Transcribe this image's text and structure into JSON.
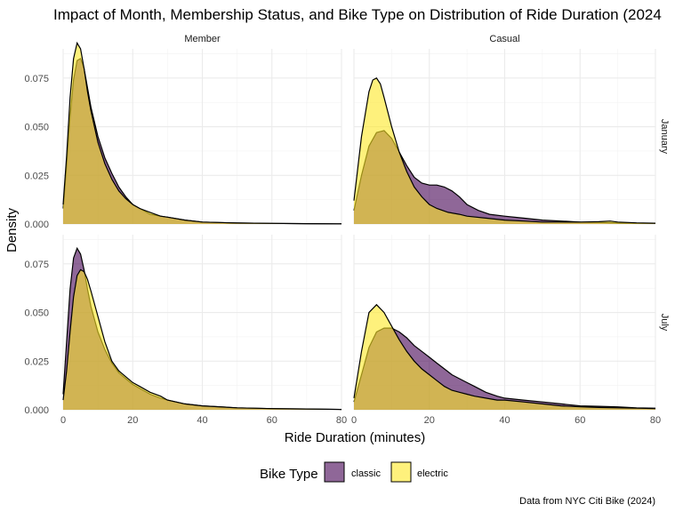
{
  "chart_data": {
    "type": "area",
    "subtype": "density-faceted",
    "title": "Impact of Month, Membership Status, and Bike Type on Distribution of Ride Duration (2024",
    "xlabel": "Ride Duration (minutes)",
    "ylabel": "Density",
    "xlim": [
      0,
      80
    ],
    "ylim": [
      0,
      0.09
    ],
    "x_ticks": [
      "0",
      "20",
      "40",
      "60",
      "80"
    ],
    "y_ticks": [
      "0.000",
      "0.025",
      "0.050",
      "0.075"
    ],
    "grid": true,
    "legend": {
      "title": "Bike Type",
      "position": "bottom",
      "entries": [
        {
          "label": "classic",
          "color": "#440154"
        },
        {
          "label": "electric",
          "color": "#FDE725"
        }
      ]
    },
    "caption": "Data from NYC Citi Bike (2024)",
    "col_labels": [
      "Member",
      "Casual"
    ],
    "row_labels": [
      "January",
      "July"
    ],
    "panels": [
      {
        "row": "January",
        "col": "Member",
        "series": [
          {
            "name": "classic",
            "points": [
              [
                0,
                0.008
              ],
              [
                1,
                0.03
              ],
              [
                2,
                0.055
              ],
              [
                3,
                0.074
              ],
              [
                4,
                0.084
              ],
              [
                5,
                0.085
              ],
              [
                6,
                0.08
              ],
              [
                7,
                0.07
              ],
              [
                8,
                0.06
              ],
              [
                10,
                0.045
              ],
              [
                12,
                0.034
              ],
              [
                14,
                0.026
              ],
              [
                16,
                0.019
              ],
              [
                18,
                0.014
              ],
              [
                20,
                0.01
              ],
              [
                22,
                0.008
              ],
              [
                25,
                0.005
              ],
              [
                28,
                0.004
              ],
              [
                30,
                0.0035
              ],
              [
                35,
                0.002
              ],
              [
                40,
                0.001
              ],
              [
                50,
                0.0005
              ],
              [
                60,
                0.0003
              ],
              [
                70,
                0.0002
              ],
              [
                80,
                0.0001
              ]
            ]
          },
          {
            "name": "electric",
            "points": [
              [
                0,
                0.01
              ],
              [
                1,
                0.035
              ],
              [
                2,
                0.065
              ],
              [
                3,
                0.085
              ],
              [
                4,
                0.093
              ],
              [
                5,
                0.09
              ],
              [
                6,
                0.08
              ],
              [
                7,
                0.068
              ],
              [
                8,
                0.058
              ],
              [
                10,
                0.042
              ],
              [
                12,
                0.031
              ],
              [
                14,
                0.023
              ],
              [
                16,
                0.017
              ],
              [
                18,
                0.013
              ],
              [
                20,
                0.01
              ],
              [
                22,
                0.008
              ],
              [
                25,
                0.006
              ],
              [
                28,
                0.004
              ],
              [
                30,
                0.0035
              ],
              [
                35,
                0.002
              ],
              [
                40,
                0.001
              ],
              [
                50,
                0.0005
              ],
              [
                60,
                0.0003
              ],
              [
                70,
                0.0002
              ],
              [
                80,
                0.0001
              ]
            ]
          }
        ]
      },
      {
        "row": "January",
        "col": "Casual",
        "series": [
          {
            "name": "classic",
            "points": [
              [
                0,
                0.007
              ],
              [
                2,
                0.025
              ],
              [
                4,
                0.04
              ],
              [
                6,
                0.047
              ],
              [
                8,
                0.048
              ],
              [
                10,
                0.044
              ],
              [
                12,
                0.037
              ],
              [
                14,
                0.03
              ],
              [
                16,
                0.024
              ],
              [
                18,
                0.021
              ],
              [
                20,
                0.02
              ],
              [
                22,
                0.02
              ],
              [
                24,
                0.019
              ],
              [
                26,
                0.017
              ],
              [
                28,
                0.014
              ],
              [
                30,
                0.01
              ],
              [
                33,
                0.007
              ],
              [
                36,
                0.005
              ],
              [
                40,
                0.004
              ],
              [
                45,
                0.003
              ],
              [
                50,
                0.002
              ],
              [
                55,
                0.0015
              ],
              [
                60,
                0.001
              ],
              [
                65,
                0.0008
              ],
              [
                70,
                0.0005
              ],
              [
                75,
                0.0004
              ],
              [
                80,
                0.0003
              ]
            ]
          },
          {
            "name": "electric",
            "points": [
              [
                0,
                0.012
              ],
              [
                2,
                0.045
              ],
              [
                4,
                0.068
              ],
              [
                5,
                0.074
              ],
              [
                6,
                0.075
              ],
              [
                7,
                0.072
              ],
              [
                8,
                0.065
              ],
              [
                10,
                0.05
              ],
              [
                12,
                0.037
              ],
              [
                14,
                0.027
              ],
              [
                16,
                0.019
              ],
              [
                18,
                0.014
              ],
              [
                20,
                0.01
              ],
              [
                22,
                0.008
              ],
              [
                25,
                0.006
              ],
              [
                28,
                0.005
              ],
              [
                30,
                0.004
              ],
              [
                35,
                0.003
              ],
              [
                40,
                0.002
              ],
              [
                45,
                0.0015
              ],
              [
                50,
                0.001
              ],
              [
                60,
                0.001
              ],
              [
                65,
                0.0012
              ],
              [
                68,
                0.0015
              ],
              [
                70,
                0.001
              ],
              [
                75,
                0.0006
              ],
              [
                80,
                0.0004
              ]
            ]
          }
        ]
      },
      {
        "row": "July",
        "col": "Member",
        "series": [
          {
            "name": "classic",
            "points": [
              [
                0,
                0.008
              ],
              [
                1,
                0.035
              ],
              [
                2,
                0.062
              ],
              [
                3,
                0.078
              ],
              [
                4,
                0.083
              ],
              [
                5,
                0.08
              ],
              [
                6,
                0.072
              ],
              [
                7,
                0.062
              ],
              [
                8,
                0.053
              ],
              [
                10,
                0.04
              ],
              [
                12,
                0.031
              ],
              [
                14,
                0.024
              ],
              [
                16,
                0.019
              ],
              [
                18,
                0.016
              ],
              [
                20,
                0.013
              ],
              [
                22,
                0.011
              ],
              [
                25,
                0.008
              ],
              [
                28,
                0.006
              ],
              [
                30,
                0.005
              ],
              [
                35,
                0.003
              ],
              [
                40,
                0.002
              ],
              [
                50,
                0.001
              ],
              [
                60,
                0.0006
              ],
              [
                70,
                0.0004
              ],
              [
                80,
                0.0002
              ]
            ]
          },
          {
            "name": "electric",
            "points": [
              [
                0,
                0.005
              ],
              [
                1,
                0.02
              ],
              [
                2,
                0.04
              ],
              [
                3,
                0.058
              ],
              [
                4,
                0.069
              ],
              [
                5,
                0.072
              ],
              [
                6,
                0.071
              ],
              [
                7,
                0.067
              ],
              [
                8,
                0.061
              ],
              [
                10,
                0.048
              ],
              [
                12,
                0.035
              ],
              [
                14,
                0.025
              ],
              [
                16,
                0.02
              ],
              [
                18,
                0.017
              ],
              [
                20,
                0.014
              ],
              [
                22,
                0.012
              ],
              [
                25,
                0.009
              ],
              [
                28,
                0.007
              ],
              [
                30,
                0.005
              ],
              [
                35,
                0.003
              ],
              [
                40,
                0.002
              ],
              [
                50,
                0.001
              ],
              [
                60,
                0.0006
              ],
              [
                70,
                0.0004
              ],
              [
                80,
                0.0002
              ]
            ]
          }
        ]
      },
      {
        "row": "July",
        "col": "Casual",
        "series": [
          {
            "name": "classic",
            "points": [
              [
                0,
                0.004
              ],
              [
                2,
                0.018
              ],
              [
                4,
                0.032
              ],
              [
                6,
                0.04
              ],
              [
                8,
                0.042
              ],
              [
                10,
                0.042
              ],
              [
                12,
                0.04
              ],
              [
                14,
                0.037
              ],
              [
                16,
                0.033
              ],
              [
                18,
                0.03
              ],
              [
                20,
                0.027
              ],
              [
                22,
                0.024
              ],
              [
                24,
                0.021
              ],
              [
                26,
                0.018
              ],
              [
                28,
                0.016
              ],
              [
                30,
                0.014
              ],
              [
                32,
                0.012
              ],
              [
                35,
                0.009
              ],
              [
                38,
                0.007
              ],
              [
                40,
                0.006
              ],
              [
                45,
                0.005
              ],
              [
                50,
                0.004
              ],
              [
                55,
                0.003
              ],
              [
                60,
                0.002
              ],
              [
                65,
                0.0018
              ],
              [
                70,
                0.0015
              ],
              [
                75,
                0.001
              ],
              [
                80,
                0.0008
              ]
            ]
          },
          {
            "name": "electric",
            "points": [
              [
                0,
                0.006
              ],
              [
                2,
                0.03
              ],
              [
                4,
                0.05
              ],
              [
                6,
                0.054
              ],
              [
                8,
                0.05
              ],
              [
                10,
                0.043
              ],
              [
                12,
                0.036
              ],
              [
                14,
                0.03
              ],
              [
                16,
                0.025
              ],
              [
                18,
                0.021
              ],
              [
                20,
                0.018
              ],
              [
                22,
                0.015
              ],
              [
                24,
                0.012
              ],
              [
                26,
                0.01
              ],
              [
                28,
                0.009
              ],
              [
                30,
                0.008
              ],
              [
                32,
                0.007
              ],
              [
                35,
                0.006
              ],
              [
                38,
                0.005
              ],
              [
                40,
                0.005
              ],
              [
                45,
                0.004
              ],
              [
                50,
                0.003
              ],
              [
                55,
                0.002
              ],
              [
                60,
                0.0015
              ],
              [
                65,
                0.0012
              ],
              [
                70,
                0.001
              ],
              [
                75,
                0.0008
              ],
              [
                80,
                0.0006
              ]
            ]
          }
        ]
      }
    ]
  }
}
